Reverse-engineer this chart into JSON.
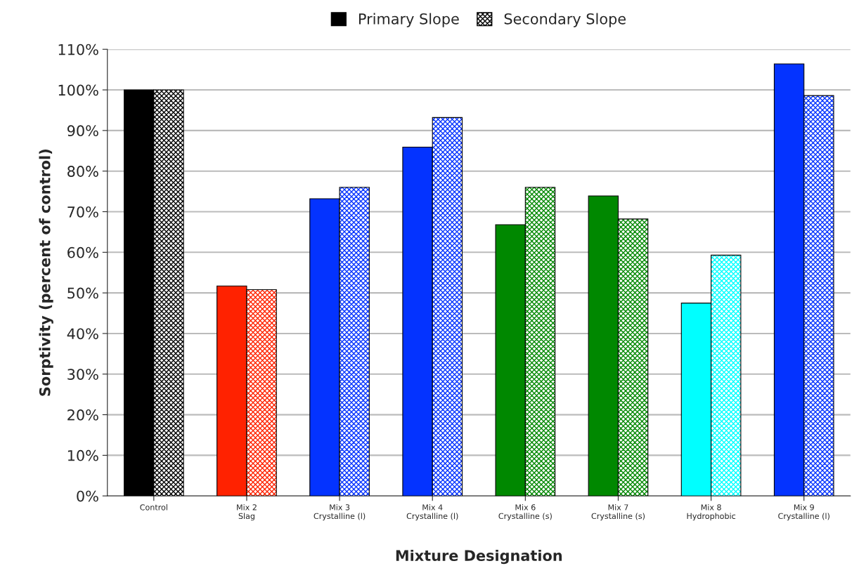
{
  "chart_data": {
    "type": "bar",
    "xlabel": "Mixture Designation",
    "ylabel": "Sorptivity (percent of control)",
    "categories": [
      "Control",
      "Mix 2\nSlag",
      "Mix 3\nCrystalline (l)",
      "Mix 4\nCrystalline (l)",
      "Mix 6\nCrystalline (s)",
      "Mix 7\nCrystalline (s)",
      "Mix 8\nHydrophobic",
      "Mix 9\nCrystalline (l)"
    ],
    "series": [
      {
        "name": "Primary Slope",
        "color": "#000000",
        "colors": [
          "#000000",
          "#ff2200",
          "#0433ff",
          "#0433ff",
          "#008800",
          "#008800",
          "#00ffff",
          "#0433ff"
        ],
        "values": [
          100,
          51.7,
          73.2,
          85.9,
          66.8,
          73.9,
          47.5,
          106.4
        ]
      },
      {
        "name": "Secondary Slope",
        "color": "#000000",
        "colors": [
          "#000000",
          "#ff2200",
          "#0433ff",
          "#0433ff",
          "#008800",
          "#008800",
          "#00ffff",
          "#0433ff"
        ],
        "values": [
          100,
          50.8,
          76.0,
          93.2,
          76.0,
          68.2,
          59.3,
          98.6
        ]
      }
    ],
    "ylim": [
      0,
      110
    ],
    "yticks": [
      {
        "value": 0,
        "label": "0%"
      },
      {
        "value": 10,
        "label": "10%"
      },
      {
        "value": 20,
        "label": "20%"
      },
      {
        "value": 30,
        "label": "30%"
      },
      {
        "value": 40,
        "label": "40%"
      },
      {
        "value": 50,
        "label": "50%"
      },
      {
        "value": 60,
        "label": "60%"
      },
      {
        "value": 70,
        "label": "70%"
      },
      {
        "value": 80,
        "label": "80%"
      },
      {
        "value": 90,
        "label": "90%"
      },
      {
        "value": 100,
        "label": "100%"
      },
      {
        "value": 110,
        "label": "110%"
      }
    ],
    "grid": "y",
    "legend": "top"
  }
}
